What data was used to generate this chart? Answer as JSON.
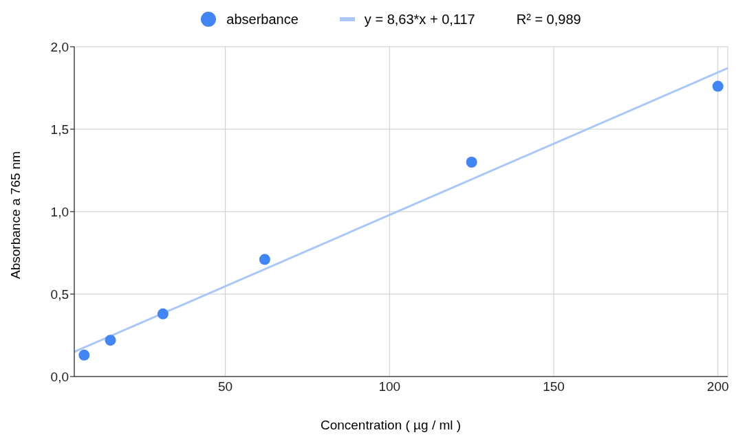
{
  "chart_data": {
    "type": "scatter",
    "xlabel": "Concentration ( µg / ml )",
    "ylabel": "Absorbance  a 765 nm",
    "xlim": [
      4,
      203
    ],
    "xticks": [
      50,
      100,
      150,
      200
    ],
    "ylim": [
      0,
      2
    ],
    "yticks": [
      {
        "value": 0,
        "label": "0,0"
      },
      {
        "value": 0.5,
        "label": "0,5"
      },
      {
        "value": 1,
        "label": "1,0"
      },
      {
        "value": 1.5,
        "label": "1,5"
      },
      {
        "value": 2,
        "label": "2,0"
      }
    ],
    "series": [
      {
        "name": "abserbance",
        "color": "#4285f4",
        "x": [
          7,
          15,
          31,
          62,
          125,
          200
        ],
        "values": [
          0.13,
          0.22,
          0.38,
          0.71,
          1.3,
          1.76
        ]
      },
      {
        "name": "y = 8,63*x + 0,117",
        "type": "line",
        "marker": "none",
        "color": "#a9c8f8",
        "x": [
          4,
          203
        ],
        "values": [
          0.15,
          1.87
        ]
      }
    ],
    "annotations": [
      "R² = 0,989"
    ],
    "grid": true,
    "legend": "top",
    "marker": "circle",
    "line_style": "solid"
  }
}
